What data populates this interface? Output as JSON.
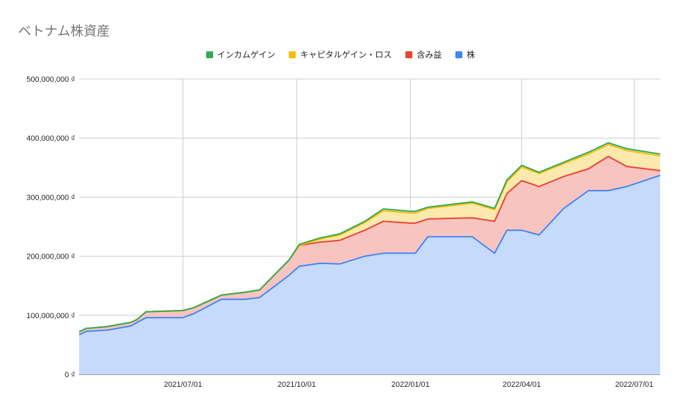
{
  "chart_data": {
    "type": "area",
    "stacked": true,
    "title": "ベトナム株資産",
    "xlabel": "",
    "ylabel": "",
    "x_start": "2021-04-08",
    "x_end": "2022-07-22",
    "ylim": [
      0,
      500000000
    ],
    "yticks": [
      {
        "value": 0,
        "label": "0 ₫"
      },
      {
        "value": 100000000,
        "label": "100,000,000 ₫"
      },
      {
        "value": 200000000,
        "label": "200,000,000 ₫"
      },
      {
        "value": 300000000,
        "label": "300,000,000 ₫"
      },
      {
        "value": 400000000,
        "label": "400,000,000 ₫"
      },
      {
        "value": 500000000,
        "label": "500,000,000 ₫"
      }
    ],
    "xticks": [
      {
        "date": "2021-07-01",
        "label": "2021/07/01"
      },
      {
        "date": "2021-10-01",
        "label": "2021/10/01"
      },
      {
        "date": "2022-01-01",
        "label": "2022/01/01"
      },
      {
        "date": "2022-04-01",
        "label": "2022/04/01"
      },
      {
        "date": "2022-07-01",
        "label": "2022/07/01"
      }
    ],
    "grid": true,
    "legend_position": "top",
    "x": [
      "2021-04-08",
      "2021-04-14",
      "2021-04-16",
      "2021-05-01",
      "2021-05-20",
      "2021-05-25",
      "2021-06-01",
      "2021-07-01",
      "2021-07-10",
      "2021-08-01",
      "2021-08-20",
      "2021-09-01",
      "2021-09-25",
      "2021-10-03",
      "2021-10-20",
      "2021-11-05",
      "2021-11-25",
      "2021-12-10",
      "2022-01-01",
      "2022-01-05",
      "2022-01-15",
      "2022-02-20",
      "2022-03-10",
      "2022-03-20",
      "2022-04-01",
      "2022-04-15",
      "2022-05-05",
      "2022-05-25",
      "2022-06-10",
      "2022-06-25",
      "2022-07-22"
    ],
    "series": [
      {
        "name": "株",
        "color": "#4285f4",
        "fill": "#c6dafc",
        "values": [
          67000000,
          73000000,
          73000000,
          75000000,
          82000000,
          88000000,
          96000000,
          96000000,
          103000000,
          127000000,
          127000000,
          130000000,
          168000000,
          183000000,
          188000000,
          187000000,
          200000000,
          205000000,
          205000000,
          205000000,
          233000000,
          233000000,
          205000000,
          244000000,
          244000000,
          236000000,
          281000000,
          311000000,
          311000000,
          318000000,
          337000000
        ]
      },
      {
        "name": "含み益",
        "color": "#ea4335",
        "fill": "#f8c4c0",
        "values": [
          5000000,
          5000000,
          5000000,
          6000000,
          6000000,
          5000000,
          10000000,
          12000000,
          10000000,
          7000000,
          12000000,
          13000000,
          26000000,
          35000000,
          36000000,
          40000000,
          44000000,
          54000000,
          51000000,
          51000000,
          30000000,
          32000000,
          54000000,
          62000000,
          84000000,
          82000000,
          54000000,
          37000000,
          58000000,
          34000000,
          8000000
        ]
      },
      {
        "name": "キャピタルゲイン・ロス",
        "color": "#fbbc04",
        "fill": "#fde9ad",
        "values": [
          0,
          0,
          0,
          0,
          0,
          0,
          0,
          0,
          0,
          0,
          0,
          0,
          0,
          0,
          5000000,
          9000000,
          13000000,
          18000000,
          17000000,
          17000000,
          18000000,
          25000000,
          20000000,
          20000000,
          23000000,
          22000000,
          22000000,
          25000000,
          20000000,
          27000000,
          25000000
        ]
      },
      {
        "name": "インカムゲイン",
        "color": "#34a853",
        "fill": "#d4edda",
        "values": [
          0,
          0,
          0,
          0,
          0,
          0,
          0,
          0,
          0,
          0,
          0,
          0,
          0,
          2000000,
          2000000,
          2000000,
          2000000,
          3000000,
          3000000,
          3000000,
          2000000,
          2000000,
          2000000,
          3000000,
          3000000,
          2000000,
          2000000,
          3000000,
          3000000,
          3000000,
          3000000
        ]
      }
    ],
    "legend_order": [
      "インカムゲイン",
      "キャピタルゲイン・ロス",
      "含み益",
      "株"
    ]
  }
}
